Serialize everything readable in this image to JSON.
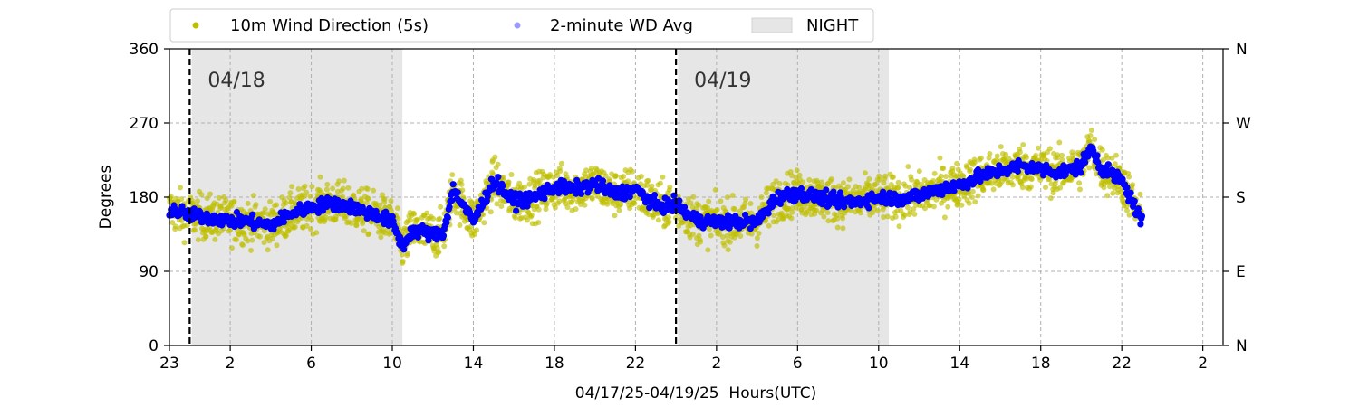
{
  "chart_data": {
    "type": "scatter",
    "title": "",
    "xlabel": "04/17/25-04/19/25  Hours(UTC)",
    "ylabel": "Degrees",
    "x_range_hours": [
      -1,
      51
    ],
    "ylim": [
      0,
      360
    ],
    "x_tick_labels": [
      "23",
      "2",
      "6",
      "10",
      "14",
      "18",
      "22",
      "2",
      "6",
      "10",
      "14",
      "18",
      "22",
      "2"
    ],
    "x_tick_hours": [
      -1,
      2,
      6,
      10,
      14,
      18,
      22,
      26,
      30,
      34,
      38,
      42,
      46,
      50
    ],
    "y_ticks": [
      0,
      90,
      180,
      270,
      360
    ],
    "y_tick_labels": [
      "0",
      "90",
      "180",
      "270",
      "360"
    ],
    "right_axis_labels": [
      "N",
      "E",
      "S",
      "W",
      "N"
    ],
    "grid": true,
    "legend": {
      "placement": "top",
      "entries": [
        "10m Wind Direction (5s)",
        "2-minute WD Avg",
        "NIGHT"
      ]
    },
    "day_markers": [
      {
        "label": "04/18",
        "hour": 0
      },
      {
        "label": "04/19",
        "hour": 24
      }
    ],
    "night_periods": [
      [
        0.1,
        10.5
      ],
      [
        24.1,
        34.5
      ]
    ],
    "series": [
      {
        "name": "10m Wind Direction (5s)",
        "color": "#bfbf00",
        "spread_deg": 22,
        "x": [
          -1,
          0,
          1,
          2,
          3,
          4,
          5,
          6,
          7,
          8,
          9,
          10,
          10.5,
          11,
          12,
          12.5,
          13,
          14,
          15,
          16,
          17,
          18,
          19,
          20,
          21,
          22,
          23,
          24,
          25,
          26,
          27,
          28,
          29,
          30,
          31,
          32,
          33,
          34,
          35,
          36,
          37,
          38,
          39,
          40,
          41,
          42,
          43,
          44,
          44.5,
          45,
          46,
          47
        ],
        "y": [
          165,
          158,
          155,
          152,
          150,
          146,
          160,
          168,
          173,
          168,
          160,
          150,
          120,
          140,
          135,
          135,
          190,
          150,
          200,
          175,
          180,
          192,
          190,
          196,
          184,
          190,
          170,
          170,
          152,
          150,
          150,
          150,
          180,
          185,
          180,
          175,
          175,
          180,
          178,
          182,
          190,
          195,
          205,
          212,
          218,
          214,
          210,
          218,
          240,
          215,
          200,
          150
        ]
      },
      {
        "name": "2-minute WD Avg",
        "color": "#0000ff",
        "x": [
          -1,
          0,
          1,
          2,
          3,
          4,
          5,
          6,
          7,
          8,
          9,
          10,
          10.5,
          11,
          12,
          12.5,
          13,
          14,
          15,
          16,
          17,
          18,
          19,
          20,
          21,
          22,
          23,
          24,
          25,
          26,
          27,
          28,
          29,
          30,
          31,
          32,
          33,
          34,
          35,
          36,
          37,
          38,
          39,
          40,
          41,
          42,
          43,
          44,
          44.5,
          45,
          46,
          47
        ],
        "y": [
          165,
          158,
          155,
          152,
          150,
          146,
          160,
          168,
          173,
          168,
          160,
          150,
          120,
          140,
          135,
          135,
          190,
          150,
          200,
          175,
          180,
          192,
          190,
          196,
          184,
          190,
          170,
          170,
          152,
          150,
          150,
          150,
          180,
          185,
          180,
          175,
          175,
          180,
          178,
          182,
          190,
          195,
          205,
          212,
          218,
          214,
          210,
          218,
          240,
          215,
          200,
          150
        ]
      }
    ]
  }
}
